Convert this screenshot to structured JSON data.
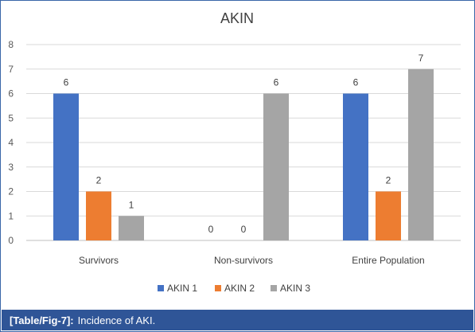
{
  "chart_data": {
    "type": "bar",
    "title": "AKIN",
    "categories": [
      "Survivors",
      "Non-survivors",
      "Entire Population"
    ],
    "series": [
      {
        "name": "AKIN 1",
        "values": [
          6,
          0,
          6
        ],
        "color": "#4472c4"
      },
      {
        "name": "AKIN 2",
        "values": [
          2,
          0,
          2
        ],
        "color": "#ed7d31"
      },
      {
        "name": "AKIN 3",
        "values": [
          1,
          6,
          7
        ],
        "color": "#a5a5a5"
      }
    ],
    "ylim": [
      0,
      8
    ],
    "yticks": [
      "0",
      "1",
      "2",
      "3",
      "4",
      "5",
      "6",
      "7",
      "8"
    ],
    "grid": true,
    "legend": "bottom",
    "data_labels": true
  },
  "caption": {
    "label": "[Table/Fig-7]:",
    "text": "Incidence of AKI."
  }
}
